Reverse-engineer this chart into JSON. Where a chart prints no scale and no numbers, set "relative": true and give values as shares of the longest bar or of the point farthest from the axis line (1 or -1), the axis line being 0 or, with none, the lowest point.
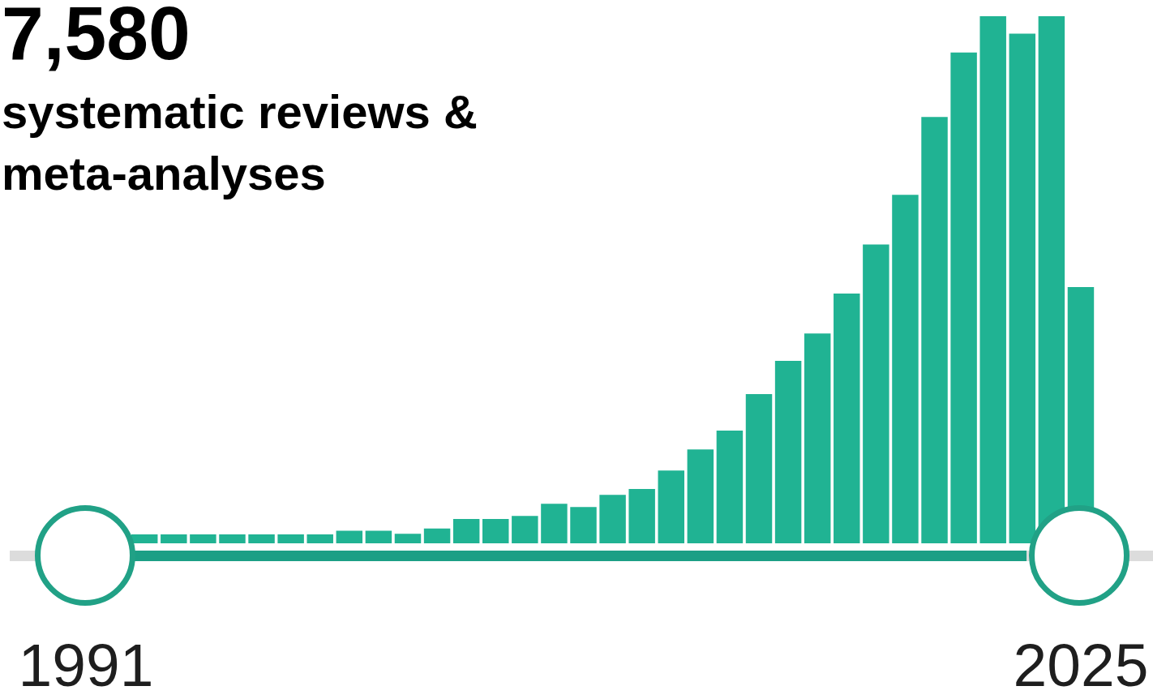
{
  "chart_data": {
    "type": "bar",
    "title": "7,580",
    "subtitle": "systematic reviews & meta-analyses",
    "categories": [
      "1991",
      null,
      null,
      null,
      null,
      null,
      null,
      null,
      null,
      null,
      null,
      null,
      null,
      null,
      null,
      null,
      null,
      null,
      null,
      null,
      null,
      null,
      null,
      null,
      null,
      null,
      null,
      null,
      null,
      null,
      null,
      null,
      null,
      null,
      "2025"
    ],
    "values": [
      null,
      null,
      0.017,
      0.017,
      0.017,
      0.017,
      0.017,
      0.017,
      0.017,
      0.024,
      0.024,
      0.018,
      0.028,
      0.046,
      0.046,
      0.052,
      0.075,
      0.069,
      0.092,
      0.103,
      0.138,
      0.178,
      0.214,
      0.283,
      0.346,
      0.398,
      0.474,
      0.567,
      0.661,
      0.809,
      0.931,
      1,
      0.967,
      1,
      0.486
    ],
    "color": "#20b393",
    "relative": true
  }
}
